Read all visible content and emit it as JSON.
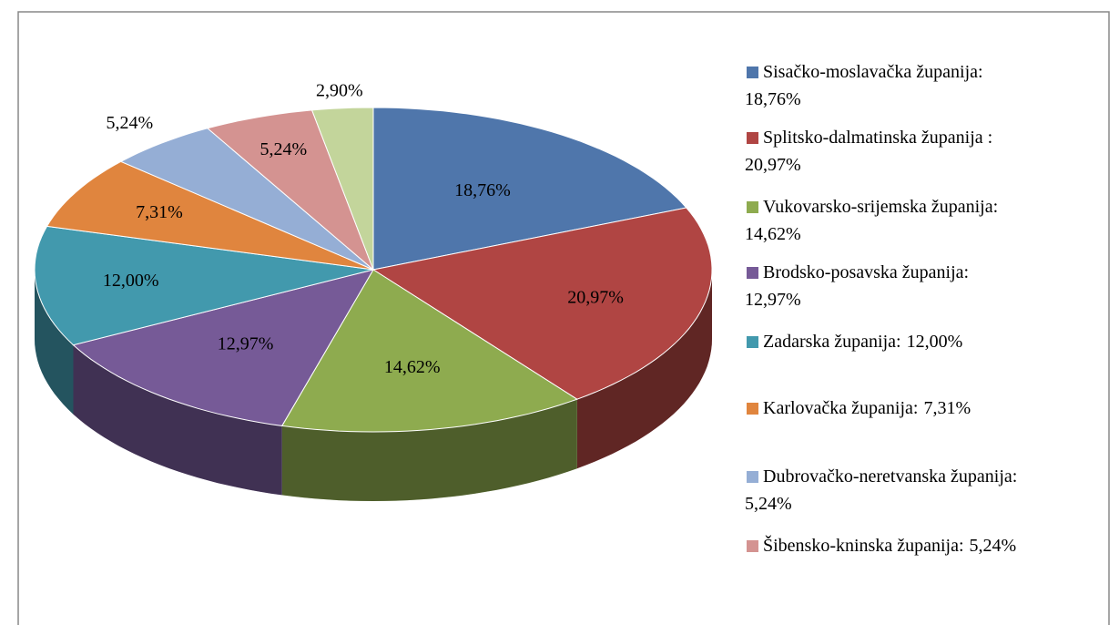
{
  "chart_data": {
    "type": "pie",
    "categories": [
      "Sisačko-moslavačka županija:",
      "Splitsko-dalmatinska županija :",
      "Vukovarsko-srijemska županija:",
      "Brodsko-posavska županija:",
      "Zadarska županija:",
      "Karlovačka županija:",
      "Dubrovačko-neretvanska županija:",
      "Šibensko-kninska županija:",
      null
    ],
    "values": [
      18.76,
      20.97,
      14.62,
      12.97,
      12.0,
      7.31,
      5.24,
      5.24,
      2.9
    ],
    "value_labels": [
      "18,76%",
      "20,97%",
      "14,62%",
      "12,97%",
      "12,00%",
      "7,31%",
      "5,24%",
      "5,24%",
      "2,90%"
    ],
    "colors": [
      "#4f76ab",
      "#b04543",
      "#8eab4f",
      "#765a97",
      "#4299ad",
      "#e0853e",
      "#95aed5",
      "#d49391",
      "#c3d59b"
    ],
    "legend": "right"
  }
}
